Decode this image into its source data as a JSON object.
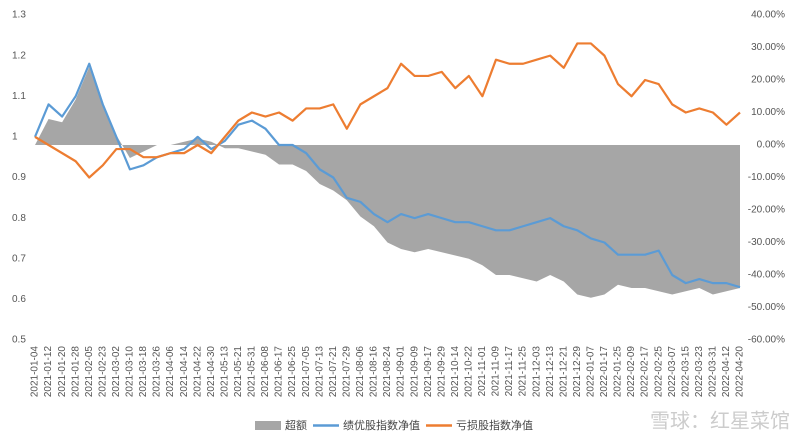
{
  "chart_data": {
    "type": "line",
    "categories": [
      "2021-01-04",
      "2021-01-12",
      "2021-01-20",
      "2021-01-28",
      "2021-02-05",
      "2021-02-23",
      "2021-03-02",
      "2021-03-10",
      "2021-03-18",
      "2021-03-26",
      "2021-04-06",
      "2021-04-14",
      "2021-04-22",
      "2021-04-30",
      "2021-05-13",
      "2021-05-21",
      "2021-05-31",
      "2021-06-08",
      "2021-06-17",
      "2021-06-25",
      "2021-07-05",
      "2021-07-13",
      "2021-07-21",
      "2021-07-29",
      "2021-08-06",
      "2021-08-16",
      "2021-08-24",
      "2021-09-01",
      "2021-09-09",
      "2021-09-17",
      "2021-09-29",
      "2021-10-14",
      "2021-10-22",
      "2021-11-01",
      "2021-11-09",
      "2021-11-17",
      "2021-11-25",
      "2021-12-03",
      "2021-12-13",
      "2021-12-21",
      "2021-12-29",
      "2022-01-07",
      "2022-01-17",
      "2022-01-25",
      "2022-02-09",
      "2022-02-17",
      "2022-02-25",
      "2022-03-07",
      "2022-03-15",
      "2022-03-23",
      "2022-03-31",
      "2022-04-12",
      "2022-04-20"
    ],
    "series": [
      {
        "name": "超额",
        "color": "#a6a6a6",
        "axis": "y2",
        "kind": "area",
        "values": [
          0,
          8,
          7,
          14,
          24,
          12,
          3,
          -4,
          -2,
          0,
          0,
          1,
          2,
          1,
          -1,
          -1,
          -2,
          -3,
          -6,
          -6,
          -8,
          -12,
          -14,
          -17,
          -22,
          -25,
          -30,
          -32,
          -33,
          -32,
          -33,
          -34,
          -35,
          -37,
          -40,
          -40,
          -41,
          -42,
          -40,
          -42,
          -46,
          -47,
          -46,
          -43,
          -44,
          -44,
          -45,
          -46,
          -45,
          -44,
          -46,
          -45,
          -44
        ]
      },
      {
        "name": "绩优股指数净值",
        "color": "#5b9bd5",
        "values": [
          1.0,
          1.08,
          1.05,
          1.1,
          1.18,
          1.08,
          1.0,
          0.92,
          0.93,
          0.95,
          0.96,
          0.97,
          1.0,
          0.97,
          0.99,
          1.03,
          1.04,
          1.02,
          0.98,
          0.98,
          0.96,
          0.92,
          0.9,
          0.85,
          0.84,
          0.81,
          0.79,
          0.81,
          0.8,
          0.81,
          0.8,
          0.79,
          0.79,
          0.78,
          0.77,
          0.77,
          0.78,
          0.79,
          0.8,
          0.78,
          0.77,
          0.75,
          0.74,
          0.71,
          0.71,
          0.71,
          0.72,
          0.66,
          0.64,
          0.65,
          0.64,
          0.64,
          0.63
        ]
      },
      {
        "name": "亏损股指数净值",
        "color": "#ed7d31",
        "values": [
          1.0,
          0.98,
          0.96,
          0.94,
          0.9,
          0.93,
          0.97,
          0.97,
          0.95,
          0.95,
          0.96,
          0.96,
          0.98,
          0.96,
          1.0,
          1.04,
          1.06,
          1.05,
          1.06,
          1.04,
          1.07,
          1.07,
          1.08,
          1.02,
          1.08,
          1.1,
          1.12,
          1.18,
          1.15,
          1.15,
          1.16,
          1.12,
          1.15,
          1.1,
          1.19,
          1.18,
          1.18,
          1.19,
          1.2,
          1.17,
          1.23,
          1.23,
          1.2,
          1.13,
          1.1,
          1.14,
          1.13,
          1.08,
          1.06,
          1.07,
          1.06,
          1.03,
          1.06
        ]
      }
    ],
    "ylim": [
      0.5,
      1.3
    ],
    "yticks": [
      0.5,
      0.6,
      0.7,
      0.8,
      0.9,
      1,
      1.1,
      1.2,
      1.3
    ],
    "y2lim": [
      -60,
      40
    ],
    "y2ticks": [
      {
        "value": -60,
        "label": "-60.00%"
      },
      {
        "value": -50,
        "label": "-50.00%"
      },
      {
        "value": -40,
        "label": "-40.00%"
      },
      {
        "value": -30,
        "label": "-30.00%"
      },
      {
        "value": -20,
        "label": "-20.00%"
      },
      {
        "value": -10,
        "label": "-10.00%"
      },
      {
        "value": 0,
        "label": "0.00%"
      },
      {
        "value": 10,
        "label": "10.00%"
      },
      {
        "value": 20,
        "label": "20.00%"
      },
      {
        "value": 30,
        "label": "30.00%"
      },
      {
        "value": 40,
        "label": "40.00%"
      }
    ],
    "legend": "bottom",
    "grid": false,
    "watermark": "雪球：红星菜馆"
  }
}
